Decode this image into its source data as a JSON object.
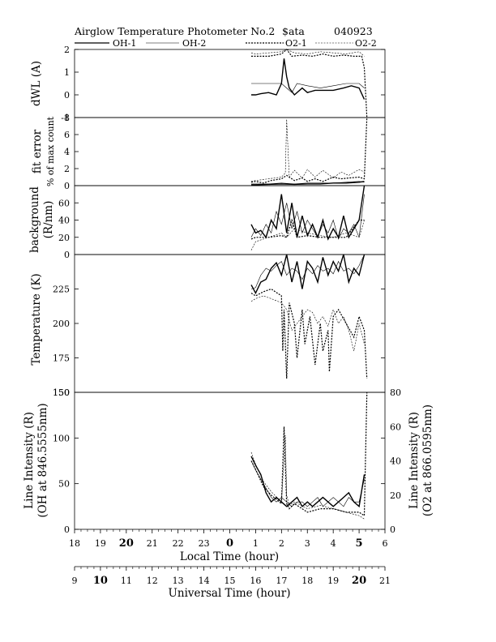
{
  "chart_data": {
    "type": "line",
    "title": "Airglow Temperature Photometer No.2",
    "title_tokens": [
      "$ata",
      "040923"
    ],
    "legend": [
      "OH-1",
      "OH-2",
      "O2-1",
      "O2-2"
    ],
    "x_local": {
      "label": "Local Time (hour)",
      "ticks": [
        "18",
        "19",
        "20",
        "21",
        "22",
        "23",
        "0",
        "1",
        "2",
        "3",
        "4",
        "5",
        "6"
      ],
      "bold": [
        "20",
        "0",
        "5"
      ]
    },
    "x_ut": {
      "label": "Universal Time (hour)",
      "ticks": [
        "9",
        "10",
        "11",
        "12",
        "13",
        "14",
        "15",
        "16",
        "17",
        "18",
        "19",
        "20",
        "21"
      ],
      "bold": [
        "10",
        "20"
      ]
    },
    "panels": [
      {
        "id": "dwl",
        "ylabel": [
          "dWL (A)"
        ],
        "ylim": [
          -1,
          2
        ],
        "yticks": [
          "2",
          "1",
          "0",
          "-1"
        ],
        "series": [
          {
            "name": "OH-1",
            "t": [
              0.83,
              0.9,
              1.0,
              1.2,
              1.5,
              1.8,
              2.0,
              2.1,
              2.2,
              2.3,
              2.5,
              2.8,
              3.0,
              3.3,
              3.6,
              4.0,
              4.4,
              4.7,
              5.0,
              5.2
            ],
            "v": [
              0.0,
              0.0,
              0.0,
              0.05,
              0.1,
              0.0,
              0.5,
              1.6,
              0.8,
              0.3,
              0.0,
              0.3,
              0.1,
              0.2,
              0.2,
              0.2,
              0.3,
              0.4,
              0.3,
              -0.2
            ]
          },
          {
            "name": "OH-2",
            "t": [
              0.83,
              1.0,
              1.5,
              2.0,
              2.2,
              2.4,
              2.6,
              3.0,
              3.5,
              4.0,
              4.5,
              5.0,
              5.2
            ],
            "v": [
              0.5,
              0.5,
              0.5,
              0.5,
              0.3,
              0.1,
              0.5,
              0.4,
              0.3,
              0.4,
              0.5,
              0.5,
              0.3
            ]
          },
          {
            "name": "O2-1",
            "t": [
              0.83,
              1.0,
              1.5,
              2.0,
              2.2,
              2.4,
              2.8,
              3.2,
              3.6,
              4.0,
              4.4,
              4.8,
              5.1,
              5.2,
              5.3
            ],
            "v": [
              1.7,
              1.7,
              1.7,
              1.8,
              2.0,
              1.7,
              1.75,
              1.7,
              1.8,
              1.7,
              1.75,
              1.7,
              1.7,
              1.2,
              -1.4
            ]
          },
          {
            "name": "O2-2",
            "t": [
              0.83,
              1.0,
              1.5,
              2.0,
              2.2,
              2.5,
              3.0,
              3.5,
              4.0,
              4.5,
              5.0,
              5.2
            ],
            "v": [
              1.85,
              1.8,
              1.85,
              1.9,
              2.0,
              1.85,
              1.8,
              1.9,
              1.85,
              1.8,
              1.9,
              1.7
            ]
          }
        ]
      },
      {
        "id": "fit",
        "ylabel": [
          "fit error",
          "% of max count"
        ],
        "ylim": [
          0,
          8
        ],
        "yticks": [
          "8",
          "6",
          "4",
          "2",
          "0"
        ],
        "series": [
          {
            "name": "OH-1",
            "t": [
              0.83,
              1.0,
              1.5,
              2.0,
              2.5,
              3.0,
              3.5,
              4.0,
              4.5,
              5.0,
              5.2
            ],
            "v": [
              0.1,
              0.1,
              0.15,
              0.2,
              0.15,
              0.2,
              0.2,
              0.3,
              0.3,
              0.4,
              0.5
            ]
          },
          {
            "name": "OH-2",
            "t": [
              0.83,
              1.0,
              1.5,
              2.0,
              2.5,
              3.0,
              3.5,
              4.0,
              4.5,
              5.0,
              5.2
            ],
            "v": [
              0.2,
              0.2,
              0.2,
              0.3,
              0.2,
              0.3,
              0.3,
              0.3,
              0.4,
              0.5,
              0.4
            ]
          },
          {
            "name": "O2-1",
            "t": [
              0.83,
              1.0,
              1.3,
              1.6,
              2.0,
              2.2,
              2.5,
              2.8,
              3.0,
              3.3,
              3.6,
              4.0,
              4.3,
              4.6,
              5.0,
              5.2,
              5.3
            ],
            "v": [
              0.4,
              0.5,
              0.3,
              0.6,
              0.8,
              1.2,
              0.6,
              0.9,
              0.5,
              0.8,
              0.5,
              1.0,
              0.8,
              0.9,
              1.0,
              0.8,
              8.0
            ]
          },
          {
            "name": "O2-2",
            "t": [
              0.83,
              1.0,
              1.5,
              2.0,
              2.15,
              2.2,
              2.3,
              2.5,
              2.8,
              3.0,
              3.3,
              3.6,
              4.0,
              4.3,
              4.6,
              5.0,
              5.2
            ],
            "v": [
              0.5,
              0.6,
              0.8,
              1.0,
              1.5,
              7.8,
              1.0,
              1.8,
              0.9,
              1.9,
              1.0,
              1.8,
              0.9,
              1.6,
              1.2,
              1.9,
              1.6
            ]
          }
        ]
      },
      {
        "id": "bg",
        "ylabel": [
          "background",
          "(R/nm)"
        ],
        "ylim": [
          0,
          80
        ],
        "yticks": [
          "60",
          "40",
          "20",
          "0"
        ],
        "series": [
          {
            "name": "OH-1",
            "t": [
              0.83,
              1.0,
              1.2,
              1.4,
              1.6,
              1.8,
              2.0,
              2.2,
              2.4,
              2.6,
              2.8,
              3.0,
              3.2,
              3.4,
              3.6,
              3.8,
              4.0,
              4.2,
              4.4,
              4.6,
              4.8,
              5.0,
              5.2
            ],
            "v": [
              35,
              25,
              28,
              20,
              40,
              30,
              70,
              25,
              60,
              20,
              45,
              22,
              35,
              20,
              40,
              18,
              30,
              20,
              45,
              20,
              30,
              40,
              80
            ]
          },
          {
            "name": "OH-2",
            "t": [
              0.83,
              1.0,
              1.2,
              1.4,
              1.6,
              1.8,
              2.0,
              2.2,
              2.4,
              2.6,
              2.8,
              3.0,
              3.2,
              3.4,
              3.6,
              3.8,
              4.0,
              4.2,
              4.4,
              4.6,
              4.8,
              5.0,
              5.2
            ],
            "v": [
              20,
              30,
              22,
              35,
              25,
              50,
              35,
              60,
              30,
              50,
              25,
              40,
              30,
              20,
              35,
              25,
              40,
              18,
              30,
              25,
              35,
              20,
              70
            ]
          },
          {
            "name": "O2-1",
            "t": [
              0.83,
              1.0,
              1.5,
              2.0,
              2.2,
              2.4,
              2.6,
              3.0,
              3.5,
              4.0,
              4.5,
              5.0,
              5.2
            ],
            "v": [
              18,
              20,
              20,
              22,
              20,
              40,
              20,
              22,
              20,
              20,
              20,
              40,
              40
            ]
          },
          {
            "name": "O2-2",
            "t": [
              0.83,
              1.0,
              1.5,
              2.0,
              2.2,
              2.5,
              3.0,
              3.5,
              4.0,
              4.5,
              5.0,
              5.2
            ],
            "v": [
              5,
              15,
              20,
              25,
              20,
              30,
              25,
              22,
              20,
              25,
              20,
              40
            ]
          }
        ]
      },
      {
        "id": "temp",
        "ylabel": [
          "Temperature (K)"
        ],
        "ylim": [
          150,
          250
        ],
        "yticks": [
          "225",
          "200",
          "175",
          "150"
        ],
        "series": [
          {
            "name": "OH-1",
            "t": [
              0.83,
              1.0,
              1.2,
              1.4,
              1.6,
              1.8,
              2.0,
              2.2,
              2.4,
              2.6,
              2.8,
              3.0,
              3.2,
              3.4,
              3.6,
              3.8,
              4.0,
              4.2,
              4.4,
              4.6,
              4.8,
              5.0,
              5.2
            ],
            "v": [
              228,
              222,
              230,
              232,
              240,
              244,
              235,
              250,
              230,
              245,
              225,
              245,
              240,
              230,
              248,
              235,
              245,
              238,
              250,
              230,
              240,
              235,
              250
            ]
          },
          {
            "name": "OH-2",
            "t": [
              0.83,
              1.0,
              1.2,
              1.4,
              1.6,
              1.8,
              2.0,
              2.2,
              2.4,
              2.6,
              2.8,
              3.0,
              3.2,
              3.4,
              3.6,
              3.8,
              4.0,
              4.2,
              4.4,
              4.6,
              4.8,
              5.0,
              5.2
            ],
            "v": [
              225,
              226,
              235,
              240,
              238,
              242,
              245,
              235,
              240,
              238,
              232,
              240,
              236,
              242,
              238,
              240,
              236,
              245,
              238,
              240,
              236,
              242,
              250
            ]
          },
          {
            "name": "O2-1",
            "t": [
              0.83,
              1.0,
              1.3,
              1.6,
              2.0,
              2.05,
              2.1,
              2.2,
              2.3,
              2.5,
              2.6,
              2.8,
              2.9,
              3.1,
              3.3,
              3.5,
              3.6,
              3.8,
              3.85,
              4.0,
              4.2,
              4.5,
              4.8,
              5.0,
              5.2,
              5.3
            ],
            "v": [
              222,
              220,
              223,
              225,
              220,
              180,
              210,
              160,
              215,
              200,
              175,
              210,
              185,
              205,
              170,
              200,
              180,
              195,
              165,
              205,
              210,
              200,
              190,
              205,
              195,
              160
            ]
          },
          {
            "name": "O2-2",
            "t": [
              0.83,
              1.0,
              1.3,
              1.6,
              2.0,
              2.2,
              2.4,
              2.6,
              2.8,
              3.0,
              3.2,
              3.4,
              3.6,
              3.8,
              4.0,
              4.2,
              4.4,
              4.6,
              4.8,
              5.0,
              5.2
            ],
            "v": [
              216,
              218,
              220,
              218,
              215,
              210,
              195,
              200,
              205,
              210,
              208,
              200,
              205,
              198,
              210,
              200,
              205,
              195,
              180,
              200,
              185
            ]
          }
        ]
      },
      {
        "id": "intensity",
        "ylabel": [
          "Line Intensity (R)",
          "(OH at 846.5555nm)"
        ],
        "ylim": [
          0,
          150
        ],
        "yticks": [
          "150",
          "100",
          "50",
          "0"
        ],
        "ylabel_right": [
          "Line Intensity (R)",
          "(O2 at 866.0595nm)"
        ],
        "ylim_right": [
          0,
          80
        ],
        "yticks_right": [
          "80",
          "60",
          "40",
          "20",
          "0"
        ],
        "series": [
          {
            "name": "OH-1",
            "t": [
              0.83,
              1.0,
              1.2,
              1.4,
              1.6,
              1.8,
              2.0,
              2.2,
              2.4,
              2.6,
              2.8,
              3.0,
              3.2,
              3.4,
              3.6,
              3.8,
              4.0,
              4.2,
              4.4,
              4.6,
              4.8,
              5.0,
              5.2
            ],
            "v": [
              80,
              70,
              60,
              40,
              30,
              35,
              30,
              25,
              30,
              35,
              25,
              30,
              25,
              30,
              35,
              30,
              25,
              30,
              35,
              40,
              30,
              25,
              60
            ]
          },
          {
            "name": "OH-2",
            "t": [
              0.83,
              1.0,
              1.2,
              1.4,
              1.6,
              1.8,
              2.0,
              2.2,
              2.4,
              2.6,
              2.8,
              3.0,
              3.2,
              3.4,
              3.6,
              3.8,
              4.0,
              4.2,
              4.4,
              4.6,
              4.8,
              5.0,
              5.2
            ],
            "v": [
              75,
              65,
              55,
              45,
              35,
              30,
              35,
              30,
              25,
              30,
              30,
              25,
              30,
              35,
              25,
              30,
              35,
              30,
              25,
              35,
              30,
              30,
              55
            ]
          },
          {
            "name": "O2-1",
            "t": [
              0.83,
              1.0,
              1.3,
              1.6,
              2.0,
              2.1,
              2.2,
              2.3,
              2.5,
              3.0,
              3.5,
              4.0,
              4.5,
              5.0,
              5.2,
              5.3
            ],
            "v": [
              40,
              35,
              25,
              20,
              15,
              60,
              15,
              12,
              15,
              10,
              12,
              12,
              10,
              10,
              8,
              80
            ],
            "axis": "right"
          },
          {
            "name": "O2-2",
            "t": [
              0.83,
              1.0,
              1.3,
              1.6,
              2.0,
              2.15,
              2.2,
              2.3,
              2.5,
              3.0,
              3.5,
              4.0,
              4.5,
              5.0,
              5.2
            ],
            "v": [
              45,
              38,
              28,
              22,
              16,
              55,
              20,
              14,
              16,
              12,
              14,
              12,
              10,
              8,
              6
            ],
            "axis": "right"
          }
        ]
      }
    ]
  }
}
